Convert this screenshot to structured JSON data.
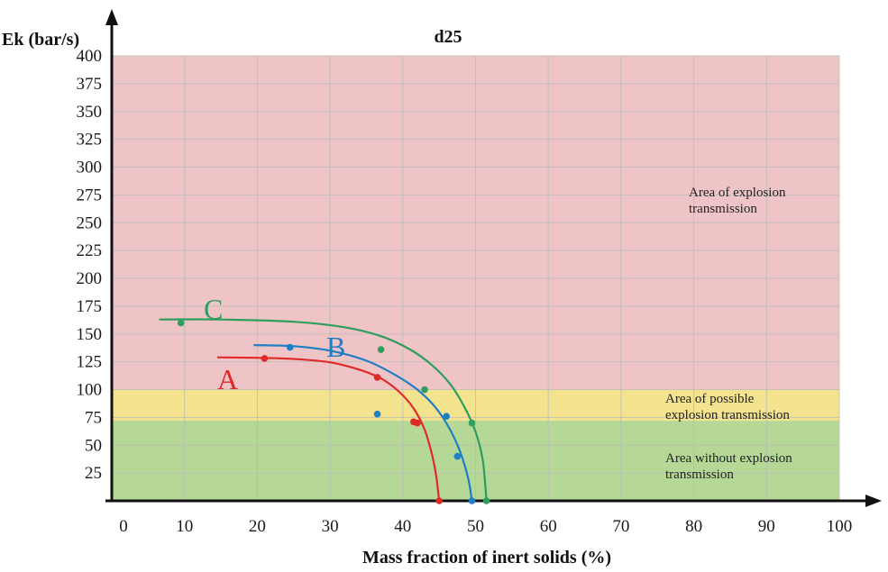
{
  "chart_data": {
    "type": "scatter",
    "title": "d25",
    "xlabel": "Mass fraction of inert solids (%)",
    "ylabel": "Ek (bar/s)",
    "xlim": [
      0,
      100
    ],
    "ylim": [
      0,
      400
    ],
    "x_ticks": [
      "0",
      "10",
      "20",
      "30",
      "40",
      "50",
      "60",
      "70",
      "80",
      "90",
      "100"
    ],
    "y_ticks": [
      "25",
      "50",
      "75",
      "100",
      "125",
      "150",
      "175",
      "200",
      "225",
      "250",
      "275",
      "300",
      "325",
      "350",
      "375",
      "400"
    ],
    "grid": true,
    "regions": [
      {
        "label": [
          "Area of explosion",
          "transmission"
        ],
        "y_range": [
          100,
          400
        ],
        "color": "#efc4c6"
      },
      {
        "label": [
          "Area of possible",
          "explosion transmission"
        ],
        "y_range": [
          72,
          100
        ],
        "color": "#f3e38e"
      },
      {
        "label": [
          "Area without explosion",
          "transmission"
        ],
        "y_range": [
          0,
          72
        ],
        "color": "#b6d896"
      }
    ],
    "series": [
      {
        "name": "A",
        "color": "#e02a2a",
        "points": [
          [
            21,
            128
          ],
          [
            36.5,
            111
          ],
          [
            41.5,
            71
          ],
          [
            42,
            70
          ],
          [
            45,
            0
          ]
        ],
        "curve": [
          [
            14.5,
            129
          ],
          [
            20,
            128.6
          ],
          [
            25,
            127.5
          ],
          [
            30,
            124.5
          ],
          [
            34,
            118
          ],
          [
            37,
            110
          ],
          [
            39.5,
            98
          ],
          [
            41.5,
            83
          ],
          [
            43,
            64
          ],
          [
            44,
            42
          ],
          [
            44.6,
            22
          ],
          [
            45,
            0
          ]
        ]
      },
      {
        "name": "B",
        "color": "#1f7fc4",
        "points": [
          [
            24.5,
            138
          ],
          [
            36.5,
            78
          ],
          [
            46,
            76
          ],
          [
            47.5,
            40
          ],
          [
            49.5,
            0
          ]
        ],
        "curve": [
          [
            19.5,
            140
          ],
          [
            25,
            139
          ],
          [
            30,
            135
          ],
          [
            35,
            126
          ],
          [
            39,
            113
          ],
          [
            42,
            100
          ],
          [
            44.5,
            84
          ],
          [
            46.5,
            64
          ],
          [
            48,
            42
          ],
          [
            49,
            20
          ],
          [
            49.5,
            0
          ]
        ]
      },
      {
        "name": "C",
        "color": "#2e9e5e",
        "points": [
          [
            9.5,
            160
          ],
          [
            37,
            136
          ],
          [
            43,
            100
          ],
          [
            49.5,
            70
          ],
          [
            51.5,
            0
          ]
        ],
        "curve": [
          [
            6.5,
            163
          ],
          [
            15,
            163
          ],
          [
            25,
            161
          ],
          [
            32,
            156
          ],
          [
            37,
            148
          ],
          [
            41,
            136
          ],
          [
            44,
            122
          ],
          [
            46.5,
            105
          ],
          [
            48.5,
            84
          ],
          [
            50,
            62
          ],
          [
            51,
            36
          ],
          [
            51.5,
            0
          ]
        ]
      }
    ]
  }
}
